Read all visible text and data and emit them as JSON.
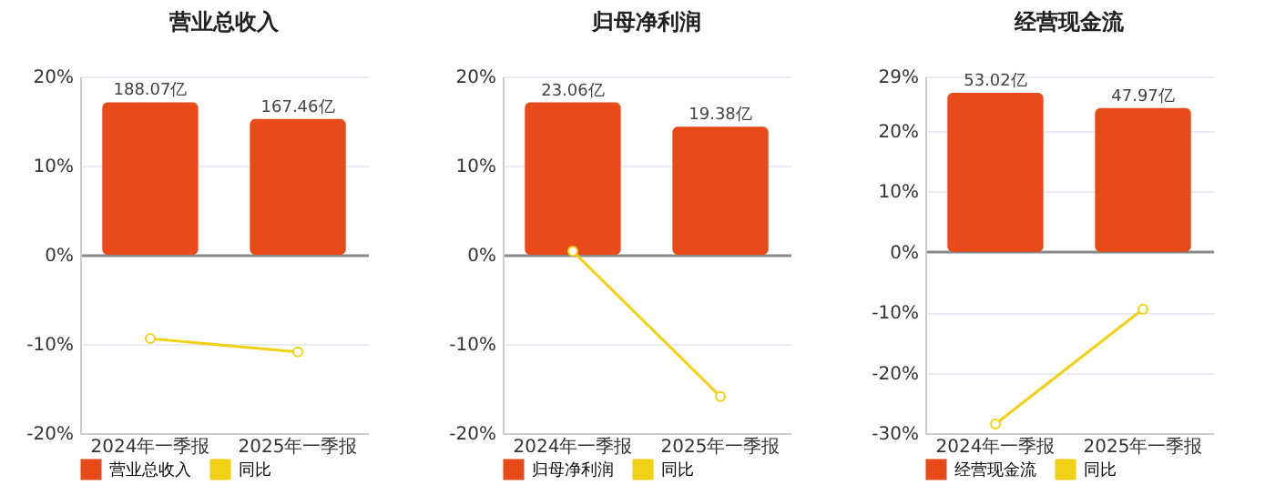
{
  "chart_data": [
    {
      "type": "bar",
      "title": "营业总收入",
      "categories": [
        "2024年一季报",
        "2025年一季报"
      ],
      "ylim": [
        -20,
        20
      ],
      "yticks": [
        {
          "value": -20,
          "label": "-20%"
        },
        {
          "value": -10,
          "label": "-10%"
        },
        {
          "value": 0,
          "label": "0%"
        },
        {
          "value": 10,
          "label": "10%"
        },
        {
          "value": 20,
          "label": "20%"
        }
      ],
      "y2lim": [
        -220,
        220
      ],
      "grid": "y",
      "legend": "bottom",
      "marker": "circle",
      "series": [
        {
          "name": "营业总收入",
          "axis": "y2",
          "color": "#e84a1a",
          "values": [
            188.07,
            167.46
          ],
          "value_labels": [
            "188.07亿",
            "167.46亿"
          ]
        },
        {
          "name": "同比",
          "type": "line",
          "color": "#f2d013",
          "values": [
            -9.4,
            -10.9
          ]
        }
      ]
    },
    {
      "type": "bar",
      "title": "归母净利润",
      "categories": [
        "2024年一季报",
        "2025年一季报"
      ],
      "ylim": [
        -20,
        20
      ],
      "yticks": [
        {
          "value": -20,
          "label": "-20%"
        },
        {
          "value": -10,
          "label": "-10%"
        },
        {
          "value": 0,
          "label": "0%"
        },
        {
          "value": 10,
          "label": "10%"
        },
        {
          "value": 20,
          "label": "20%"
        }
      ],
      "y2lim": [
        -27,
        27
      ],
      "grid": "y",
      "legend": "bottom",
      "marker": "circle",
      "series": [
        {
          "name": "归母净利润",
          "axis": "y2",
          "color": "#e84a1a",
          "values": [
            23.06,
            19.38
          ],
          "value_labels": [
            "23.06亿",
            "19.38亿"
          ]
        },
        {
          "name": "同比",
          "type": "line",
          "color": "#f2d013",
          "values": [
            0.4,
            -15.9
          ]
        }
      ]
    },
    {
      "type": "bar",
      "title": "经营现金流",
      "categories": [
        "2024年一季报",
        "2025年一季报"
      ],
      "ylim": [
        -30,
        29
      ],
      "yticks": [
        {
          "value": -30,
          "label": "-30%"
        },
        {
          "value": -20,
          "label": "-20%"
        },
        {
          "value": -10,
          "label": "-10%"
        },
        {
          "value": 0,
          "label": "0%"
        },
        {
          "value": 10,
          "label": "10%"
        },
        {
          "value": 20,
          "label": "20%"
        },
        {
          "value": 29,
          "label": "29%"
        }
      ],
      "y2lim": [
        -60.5,
        58.5
      ],
      "grid": "y",
      "legend": "bottom",
      "marker": "circle",
      "series": [
        {
          "name": "经营现金流",
          "axis": "y2",
          "color": "#e84a1a",
          "values": [
            53.02,
            47.97
          ],
          "value_labels": [
            "53.02亿",
            "47.97亿"
          ]
        },
        {
          "name": "同比",
          "type": "line",
          "color": "#f2d013",
          "values": [
            -28.5,
            -9.5
          ]
        }
      ]
    }
  ]
}
